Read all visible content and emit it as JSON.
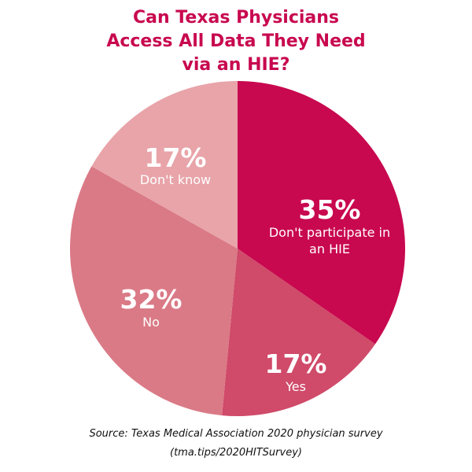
{
  "title_lines": [
    "Can Texas Physicians",
    "Access All Data They Need",
    "via an HIE?"
  ],
  "source_lines": [
    "Source: Texas Medical Association 2020 physician survey",
    "(tma.tips/2020HITSurvey)"
  ],
  "chart_data": {
    "type": "pie",
    "title": "Can Texas Physicians Access All Data They Need via an HIE?",
    "slices": [
      {
        "pct_label": "35%",
        "label_lines": [
          "Don't participate in",
          "an HIE"
        ],
        "value": 35,
        "color": "#c8084f"
      },
      {
        "pct_label": "17%",
        "label_lines": [
          "Yes"
        ],
        "value": 17,
        "color": "#d04a69"
      },
      {
        "pct_label": "32%",
        "label_lines": [
          "No"
        ],
        "value": 32,
        "color": "#da7a86"
      },
      {
        "pct_label": "17%",
        "label_lines": [
          "Don't know"
        ],
        "value": 17,
        "color": "#e8a4a9"
      }
    ]
  }
}
